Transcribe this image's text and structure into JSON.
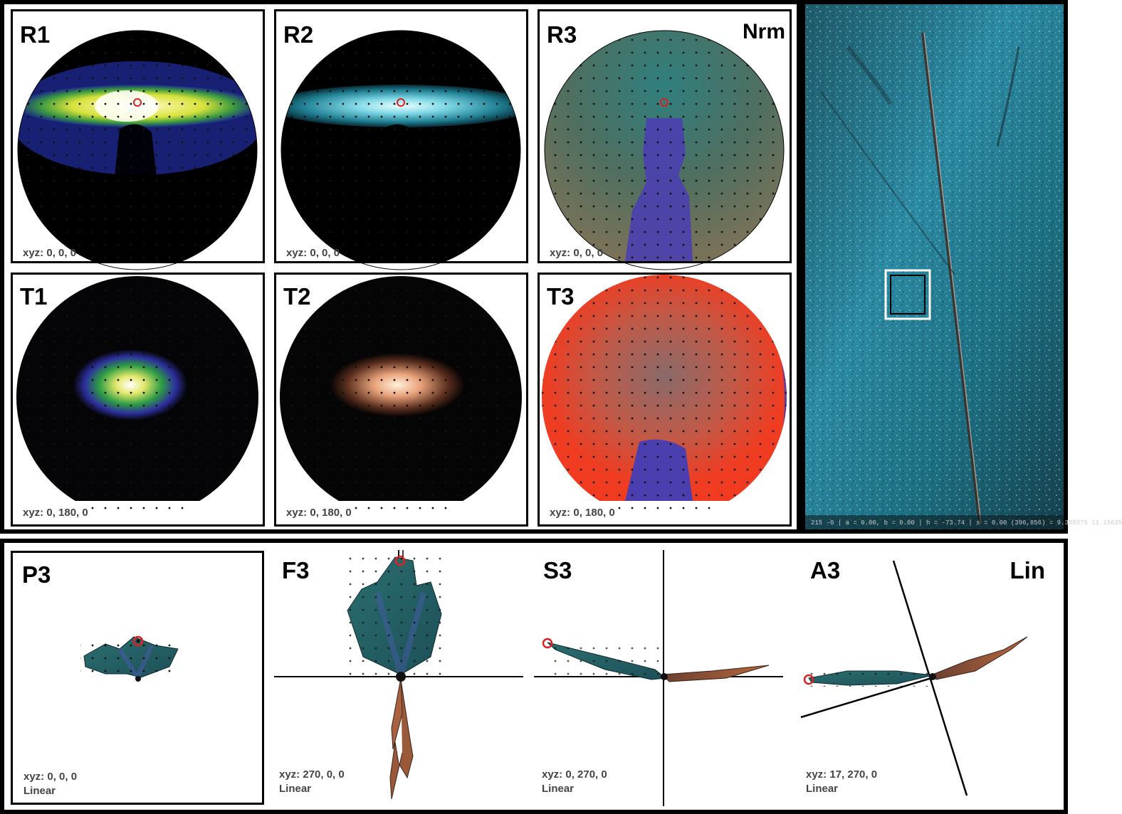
{
  "top_panels": [
    {
      "id": "R1",
      "label": "R1",
      "xyz": "xyz: 0, 0, 0"
    },
    {
      "id": "R2",
      "label": "R2",
      "xyz": "xyz: 0, 0, 0"
    },
    {
      "id": "R3",
      "label": "R3",
      "xyz": "xyz: 0, 0, 0",
      "tag": "Nrm"
    },
    {
      "id": "T1",
      "label": "T1",
      "xyz": "xyz: 0, 180, 0"
    },
    {
      "id": "T2",
      "label": "T2",
      "xyz": "xyz: 0, 180, 0"
    },
    {
      "id": "T3",
      "label": "T3",
      "xyz": "xyz: 0, 180, 0"
    }
  ],
  "photo": {
    "scale_text": "215 -0 | a = 0.00, b = 0.00 | h = -73.74 | s = 0.00 (396,856) = 9.359375 11.15625"
  },
  "bottom_panels": [
    {
      "id": "P3",
      "label": "P3",
      "xyz": "xyz: 0, 0, 0",
      "mode": "Linear"
    },
    {
      "id": "F3",
      "label": "F3",
      "xyz": "xyz: 270, 0, 0",
      "mode": "Linear"
    },
    {
      "id": "S3",
      "label": "S3",
      "xyz": "xyz: 0, 270, 0",
      "mode": "Linear"
    },
    {
      "id": "A3",
      "label": "A3",
      "xyz": "xyz: 17, 270, 0",
      "mode": "Linear",
      "tag": "Lin"
    }
  ]
}
